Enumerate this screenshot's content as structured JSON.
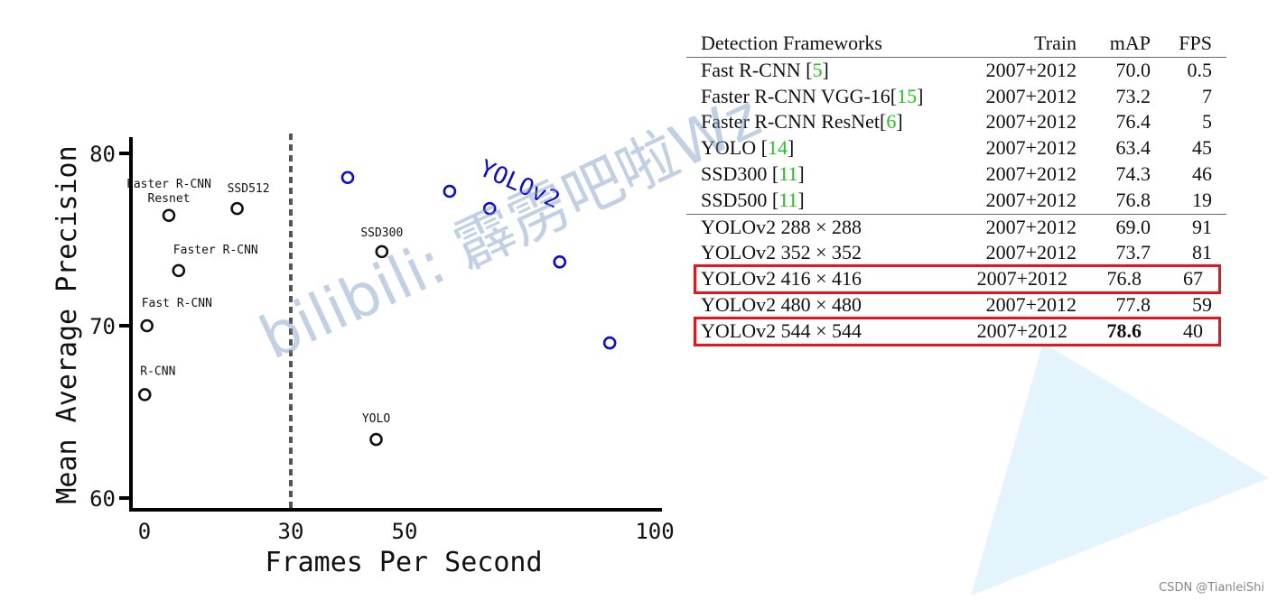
{
  "chart_data": {
    "type": "scatter",
    "title": "",
    "xlabel": "Frames Per Second",
    "ylabel": "Mean Average Precision",
    "x_ticks": [
      0,
      30,
      50,
      100
    ],
    "y_ticks": [
      60,
      70,
      80
    ],
    "ylim": [
      59.2,
      81
    ],
    "xlim": [
      0,
      100
    ],
    "grid": false,
    "reference_line": {
      "x": 30,
      "style": "dashed"
    },
    "series": [
      {
        "name": "",
        "color": "#111111",
        "points": [
          {
            "label": "R-CNN",
            "x": 0.05,
            "y": 66.0
          },
          {
            "label": "Fast R-CNN",
            "x": 0.5,
            "y": 70.0
          },
          {
            "label": "Faster R-CNN",
            "x": 7,
            "y": 73.2
          },
          {
            "label": "Faster R-CNN\nResnet",
            "x": 5,
            "y": 76.4
          },
          {
            "label": "SSD512",
            "x": 19,
            "y": 76.8
          },
          {
            "label": "SSD300",
            "x": 46,
            "y": 74.3
          },
          {
            "label": "YOLO",
            "x": 45,
            "y": 63.4
          }
        ]
      },
      {
        "name": "YOLOv2",
        "color": "#0a0adc",
        "points": [
          {
            "x": 40,
            "y": 78.6
          },
          {
            "x": 59,
            "y": 77.8
          },
          {
            "x": 67,
            "y": 76.8
          },
          {
            "x": 81,
            "y": 73.7
          },
          {
            "x": 91,
            "y": 69.0
          }
        ]
      }
    ]
  },
  "table": {
    "headers": [
      "Detection Frameworks",
      "Train",
      "mAP",
      "FPS"
    ],
    "groups": [
      [
        {
          "name": "Fast R-CNN [",
          "cite": "5",
          "close": "]",
          "train": "2007+2012",
          "map": "70.0",
          "fps": "0.5"
        },
        {
          "name": "Faster R-CNN VGG-16[",
          "cite": "15",
          "close": "]",
          "train": "2007+2012",
          "map": "73.2",
          "fps": "7"
        },
        {
          "name": "Faster R-CNN ResNet[",
          "cite": "6",
          "close": "]",
          "train": "2007+2012",
          "map": "76.4",
          "fps": "5"
        },
        {
          "name": "YOLO [",
          "cite": "14",
          "close": "]",
          "train": "2007+2012",
          "map": "63.4",
          "fps": "45"
        },
        {
          "name": "SSD300 [",
          "cite": "11",
          "close": "]",
          "train": "2007+2012",
          "map": "74.3",
          "fps": "46"
        },
        {
          "name": "SSD500 [",
          "cite": "11",
          "close": "]",
          "train": "2007+2012",
          "map": "76.8",
          "fps": "19"
        }
      ],
      [
        {
          "name": "YOLOv2 288 × 288",
          "train": "2007+2012",
          "map": "69.0",
          "fps": "91"
        },
        {
          "name": "YOLOv2 352 × 352",
          "train": "2007+2012",
          "map": "73.7",
          "fps": "81"
        },
        {
          "name": "YOLOv2 416 × 416",
          "train": "2007+2012",
          "map": "76.8",
          "fps": "67",
          "highlighted": true
        },
        {
          "name": "YOLOv2 480 × 480",
          "train": "2007+2012",
          "map": "77.8",
          "fps": "59"
        },
        {
          "name": "YOLOv2 544 × 544",
          "train": "2007+2012",
          "map": "78.6",
          "fps": "40",
          "highlighted": true,
          "bold_map": true
        }
      ]
    ],
    "colors": {
      "citation": "#22c422",
      "highlight_box": "#e8141c"
    }
  },
  "watermark": "bilibili: 霹雳吧啦Wz",
  "credit": "CSDN @TianleiShi"
}
